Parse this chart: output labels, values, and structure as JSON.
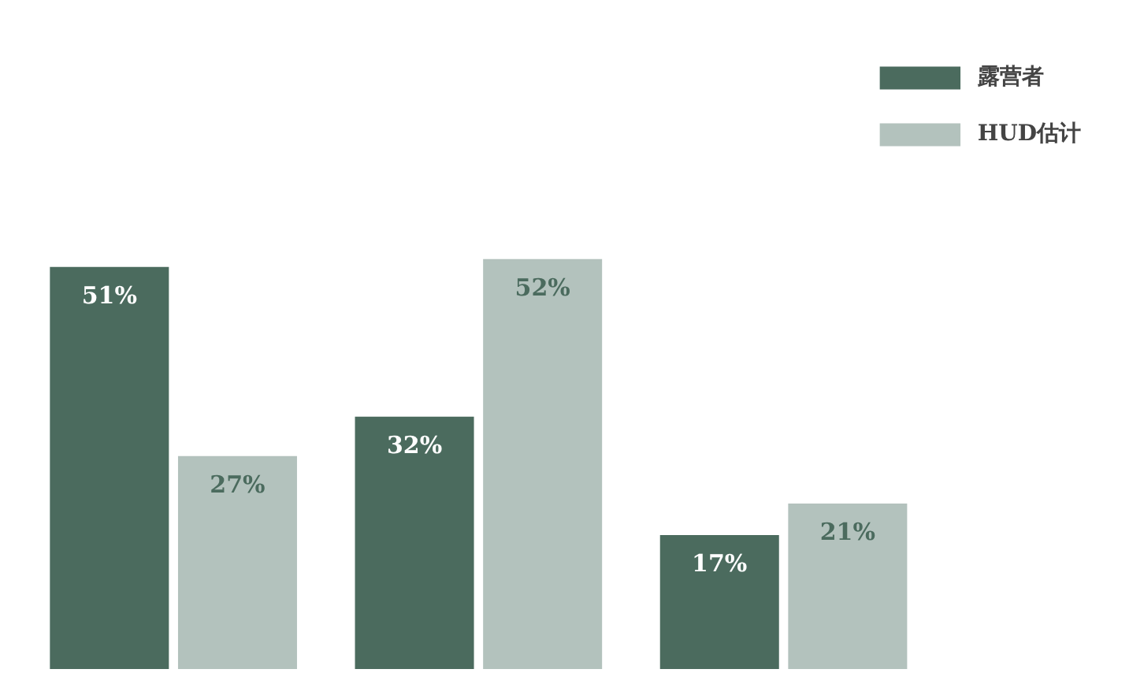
{
  "chart_data": {
    "type": "bar",
    "categories": [
      null,
      null,
      null
    ],
    "series": [
      {
        "name": "露营者",
        "color": "#4b6b5e",
        "values": [
          51,
          32,
          17
        ],
        "value_labels": [
          "51%",
          "32%",
          "17%"
        ]
      },
      {
        "name": "HUD估计",
        "color": "#b3c2bd",
        "values": [
          27,
          52,
          21
        ],
        "value_labels": [
          "27%",
          "52%",
          "21%"
        ]
      }
    ],
    "legend": "top right",
    "grid": false
  }
}
